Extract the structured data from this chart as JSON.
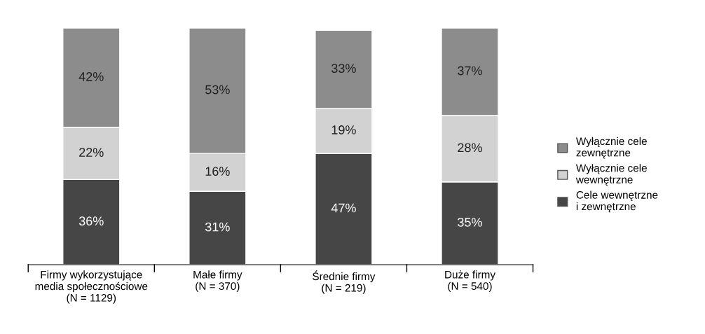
{
  "chart_data": {
    "type": "bar",
    "stacked": true,
    "categories": [
      "Firmy wykorzystujące\nmedia społecznościowe\n(N = 1129)",
      "Małe firmy\n(N = 370)",
      "Średnie firmy\n(N = 219)",
      "Duże firmy\n(N = 540)"
    ],
    "series": [
      {
        "name": "Cele wewnętrzne\ni zewnętrzne",
        "color": "#464646",
        "values": [
          36,
          31,
          47,
          35
        ],
        "value_labels": [
          "36%",
          "31%",
          "47%",
          "35%"
        ]
      },
      {
        "name": "Wyłącznie cele\nwewnętrzne",
        "color": "#d2d2d2",
        "values": [
          22,
          16,
          19,
          28
        ],
        "value_labels": [
          "22%",
          "16%",
          "19%",
          "28%"
        ]
      },
      {
        "name": "Wyłącznie cele\nzewnętrzne",
        "color": "#8c8c8c",
        "values": [
          42,
          53,
          33,
          37
        ],
        "value_labels": [
          "42%",
          "53%",
          "33%",
          "37%"
        ]
      }
    ],
    "legend": "right",
    "grid": false
  }
}
